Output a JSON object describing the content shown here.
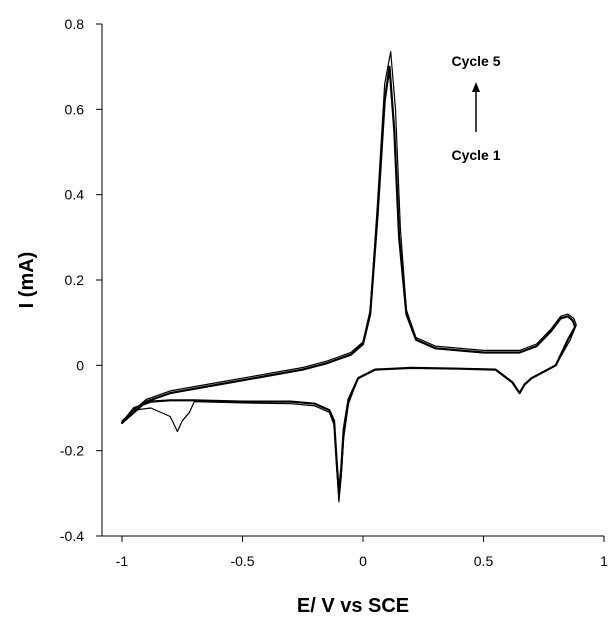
{
  "chart_data": {
    "type": "line",
    "title": "",
    "xlabel": "E/ V vs SCE",
    "ylabel": "I (mA)",
    "xlim": [
      -1,
      1
    ],
    "ylim": [
      -0.4,
      0.8
    ],
    "xticks": [
      -1,
      -0.5,
      0,
      0.5,
      1
    ],
    "xtick_labels": [
      "-1",
      "-0.5",
      "0",
      "0.5",
      "1"
    ],
    "yticks": [
      -0.4,
      -0.2,
      0,
      0.2,
      0.4,
      0.6,
      0.8
    ],
    "ytick_labels": [
      "-0.4",
      "-0.2",
      "0",
      "0.2",
      "0.4",
      "0.6",
      "0.8"
    ],
    "grid": false,
    "legend": "none",
    "line_color": "#000000",
    "annotations": {
      "top_label": "Cycle 5",
      "bottom_label": "Cycle 1",
      "arrow_direction": "up"
    },
    "series": [
      {
        "x": [
          -1.0,
          -0.95,
          -0.9,
          -0.8,
          -0.6,
          -0.4,
          -0.25,
          -0.15,
          -0.1,
          -0.05,
          0.0,
          0.03,
          0.06,
          0.09,
          0.11,
          0.13,
          0.15,
          0.18,
          0.22,
          0.3,
          0.5,
          0.65,
          0.72,
          0.78,
          0.82,
          0.85,
          0.87,
          0.88,
          0.85,
          0.8,
          0.7,
          0.67,
          0.65,
          0.62,
          0.55,
          0.4,
          0.2,
          0.05,
          -0.02,
          -0.06,
          -0.08,
          -0.09,
          -0.1,
          -0.11,
          -0.12,
          -0.14,
          -0.2,
          -0.3,
          -0.5,
          -0.7,
          -0.8,
          -0.88,
          -0.95,
          -1.0
        ],
        "y": [
          -0.135,
          -0.11,
          -0.085,
          -0.065,
          -0.045,
          -0.025,
          -0.01,
          0.005,
          0.015,
          0.025,
          0.05,
          0.12,
          0.35,
          0.62,
          0.7,
          0.55,
          0.3,
          0.12,
          0.06,
          0.04,
          0.03,
          0.03,
          0.045,
          0.08,
          0.11,
          0.115,
          0.105,
          0.09,
          0.06,
          0.0,
          -0.03,
          -0.045,
          -0.065,
          -0.04,
          -0.01,
          -0.008,
          -0.006,
          -0.01,
          -0.03,
          -0.08,
          -0.15,
          -0.24,
          -0.3,
          -0.22,
          -0.13,
          -0.105,
          -0.09,
          -0.085,
          -0.085,
          -0.082,
          -0.082,
          -0.085,
          -0.1,
          -0.135
        ]
      },
      {
        "x": [
          -1.0,
          -0.95,
          -0.9,
          -0.8,
          -0.6,
          -0.4,
          -0.25,
          -0.15,
          -0.1,
          -0.05,
          0.0,
          0.03,
          0.06,
          0.09,
          0.115,
          0.135,
          0.155,
          0.18,
          0.22,
          0.3,
          0.5,
          0.65,
          0.72,
          0.78,
          0.82,
          0.85,
          0.875,
          0.885,
          0.86,
          0.8,
          0.7,
          0.67,
          0.65,
          0.62,
          0.55,
          0.4,
          0.2,
          0.05,
          -0.02,
          -0.06,
          -0.08,
          -0.09,
          -0.1,
          -0.11,
          -0.12,
          -0.14,
          -0.2,
          -0.3,
          -0.5,
          -0.7,
          -0.72,
          -0.75,
          -0.77,
          -0.8,
          -0.88,
          -0.95,
          -1.0
        ],
        "y": [
          -0.13,
          -0.105,
          -0.08,
          -0.06,
          -0.04,
          -0.02,
          -0.005,
          0.01,
          0.02,
          0.03,
          0.055,
          0.13,
          0.38,
          0.66,
          0.735,
          0.6,
          0.32,
          0.13,
          0.065,
          0.045,
          0.035,
          0.035,
          0.05,
          0.085,
          0.115,
          0.12,
          0.11,
          0.095,
          0.06,
          0.0,
          -0.03,
          -0.045,
          -0.065,
          -0.04,
          -0.01,
          -0.008,
          -0.006,
          -0.01,
          -0.03,
          -0.09,
          -0.17,
          -0.26,
          -0.32,
          -0.23,
          -0.14,
          -0.11,
          -0.095,
          -0.09,
          -0.088,
          -0.085,
          -0.11,
          -0.13,
          -0.155,
          -0.12,
          -0.1,
          -0.105,
          -0.13
        ]
      }
    ]
  }
}
